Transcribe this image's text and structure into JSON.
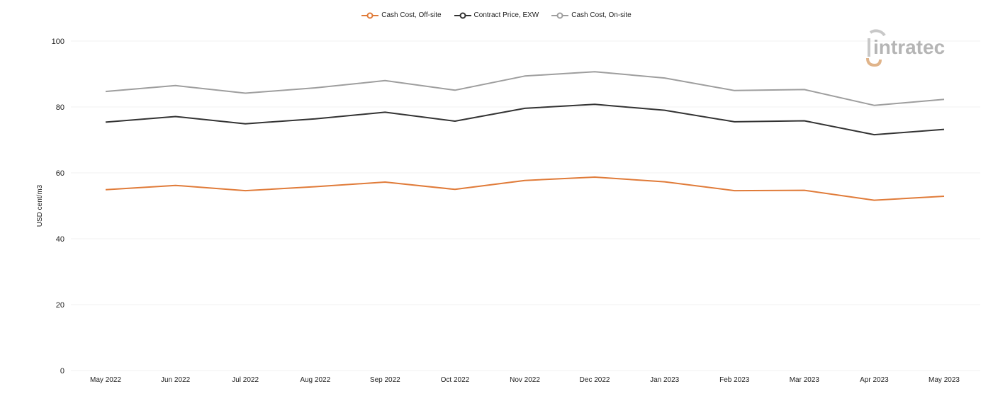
{
  "logo": {
    "text": "intratec"
  },
  "chart_data": {
    "type": "line",
    "ylabel": "USD cent/m3",
    "xlabel": "",
    "ylim": [
      0,
      100
    ],
    "yticks": [
      0,
      20,
      40,
      60,
      80,
      100
    ],
    "grid": true,
    "legend_position": "top-center",
    "categories": [
      "May 2022",
      "Jun 2022",
      "Jul 2022",
      "Aug 2022",
      "Sep 2022",
      "Oct 2022",
      "Nov 2022",
      "Dec 2022",
      "Jan 2023",
      "Feb 2023",
      "Mar 2023",
      "Apr 2023",
      "May 2023"
    ],
    "series": [
      {
        "name": "Cash Cost, Off-site",
        "color": "#e07b39",
        "values": [
          54.9,
          56.2,
          54.6,
          55.8,
          57.2,
          55.0,
          57.7,
          58.7,
          57.3,
          54.6,
          54.7,
          51.7,
          52.9
        ]
      },
      {
        "name": "Contract Price, EXW",
        "color": "#333333",
        "values": [
          75.4,
          77.1,
          74.9,
          76.4,
          78.4,
          75.7,
          79.6,
          80.8,
          79.0,
          75.5,
          75.8,
          71.6,
          73.2
        ]
      },
      {
        "name": "Cash Cost, On-site",
        "color": "#9e9e9e",
        "values": [
          84.7,
          86.5,
          84.2,
          85.8,
          88.0,
          85.1,
          89.4,
          90.7,
          88.8,
          85.0,
          85.3,
          80.5,
          82.3
        ]
      }
    ]
  }
}
